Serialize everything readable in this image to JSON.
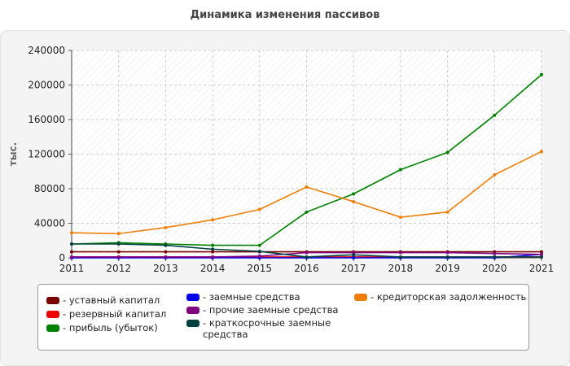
{
  "chart_data": {
    "type": "line",
    "title": "Динамика изменения пассивов",
    "ylabel": "тыс.",
    "xlabel": "",
    "categories": [
      "2011",
      "2012",
      "2013",
      "2014",
      "2015",
      "2016",
      "2017",
      "2018",
      "2019",
      "2020",
      "2021"
    ],
    "ylim": [
      0,
      240000
    ],
    "yticks": [
      0,
      40000,
      80000,
      120000,
      160000,
      200000,
      240000
    ],
    "ytick_labels": [
      "0",
      "40000",
      "80000",
      "120000",
      "160000",
      "200000",
      "240000"
    ],
    "grid": true,
    "series": [
      {
        "name": "уставный капитал",
        "color": "#7a0000",
        "values": [
          7000,
          7000,
          7000,
          7000,
          7000,
          7000,
          7000,
          7000,
          7000,
          7000,
          7000
        ]
      },
      {
        "name": "резервный капитал",
        "color": "#ee0000",
        "values": [
          1000,
          1000,
          1000,
          1000,
          1000,
          1000,
          1000,
          1000,
          1000,
          1000,
          1000
        ]
      },
      {
        "name": "прибыль (убыток)",
        "color": "#008000",
        "values": [
          16000,
          17500,
          16000,
          14500,
          14500,
          53000,
          74000,
          102000,
          122000,
          165000,
          212000
        ]
      },
      {
        "name": "заемные средства",
        "color": "#0000ee",
        "values": [
          0,
          0,
          0,
          0,
          0,
          0,
          0,
          0,
          0,
          0,
          4000
        ]
      },
      {
        "name": "прочие заемные средства",
        "color": "#800080",
        "values": [
          1000,
          1000,
          1000,
          1000,
          2000,
          6000,
          6000,
          6000,
          6000,
          5000,
          4000
        ]
      },
      {
        "name": "краткосрочные заемные средства",
        "color": "#004040",
        "values": [
          16000,
          16000,
          14500,
          10000,
          7500,
          1000,
          3500,
          1000,
          1000,
          1000,
          1000
        ]
      },
      {
        "name": "кредиторская задолженность",
        "color": "#f07f0a",
        "values": [
          29000,
          28000,
          35000,
          44000,
          56000,
          82000,
          65000,
          47000,
          53000,
          96000,
          123000
        ]
      }
    ]
  },
  "legend": {
    "prefix": "- ",
    "items": [
      "уставный капитал",
      "резервный капитал",
      "прибыль (убыток)",
      "заемные средства",
      "прочие заемные средства",
      "краткосрочные заемные средства",
      "кредиторская задолженность"
    ]
  }
}
